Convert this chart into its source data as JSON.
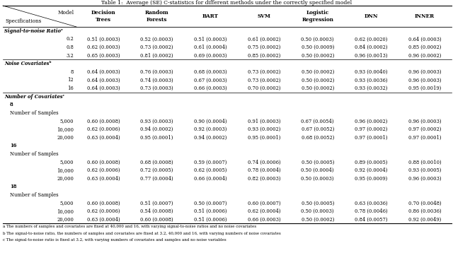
{
  "title": "Table 1:  Average (SE) C-statistics for different methods under the correctly specified model",
  "columns": [
    "Decision\nTrees",
    "Random\nForests",
    "BART",
    "SVM",
    "Logistic\nRegression",
    "DNN",
    "INNER"
  ],
  "footnotes": [
    "a The numbers of samples and covariates are fixed at 40,000 and 16, with varying signal-to-noise ratios and no noise covariates",
    "b The signal-to-noise ratio, the numbers of samples and covariates are fixed at 3.2, 40,000 and 16, with varying numbers of noise covariates",
    "c The signal-to-noise ratio is fixed at 3.2, with varying numbers of covariates and samples and no noise variables"
  ],
  "rows": [
    {
      "label": "Signal-to-noise Ratioᵃ",
      "type": "section_bold",
      "indent": 0
    },
    {
      "label": "0.2",
      "type": "data",
      "indent": 2,
      "values": [
        "0.51 (0.0003)",
        "0.52 (0.0003)",
        "0.51 (0.0003)",
        "0.61 (0.0002)",
        "0.50 (0.0003)",
        "0.62 (0.0020)",
        "0.64 (0.0003)"
      ]
    },
    {
      "label": "0.8",
      "type": "data",
      "indent": 2,
      "values": [
        "0.62 (0.0003)",
        "0.73 (0.0002)",
        "0.61 (0.0004)",
        "0.75 (0.0002)",
        "0.50 (0.0009)",
        "0.84 (0.0002)",
        "0.85 (0.0002)"
      ]
    },
    {
      "label": "3.2",
      "type": "data",
      "indent": 2,
      "values": [
        "0.65 (0.0003)",
        "0.81 (0.0002)",
        "0.69 (0.0003)",
        "0.85 (0.0002)",
        "0.50 (0.0002)",
        "0.96 (0.0013)",
        "0.96 (0.0002)"
      ]
    },
    {
      "label": "Noise Covariatesᵇ",
      "type": "section_bold",
      "indent": 0
    },
    {
      "label": "8",
      "type": "data",
      "indent": 2,
      "values": [
        "0.64 (0.0003)",
        "0.76 (0.0003)",
        "0.68 (0.0003)",
        "0.73 (0.0002)",
        "0.50 (0.0002)",
        "0.93 (0.0040)",
        "0.96 (0.0003)"
      ]
    },
    {
      "label": "12",
      "type": "data",
      "indent": 2,
      "values": [
        "0.64 (0.0003)",
        "0.74 (0.0003)",
        "0.67 (0.0003)",
        "0.73 (0.0002)",
        "0.50 (0.0002)",
        "0.93 (0.0036)",
        "0.96 (0.0003)"
      ]
    },
    {
      "label": "16",
      "type": "data",
      "indent": 2,
      "values": [
        "0.64 (0.0003)",
        "0.73 (0.0003)",
        "0.66 (0.0003)",
        "0.70 (0.0002)",
        "0.50 (0.0002)",
        "0.93 (0.0032)",
        "0.95 (0.0019)"
      ]
    },
    {
      "label": "Number of Covariatesᶜ",
      "type": "section_bold",
      "indent": 0
    },
    {
      "label": "8",
      "type": "subsection_bold",
      "indent": 1
    },
    {
      "label": "Number of Samples",
      "type": "plain",
      "indent": 1
    },
    {
      "label": "5,000",
      "type": "data",
      "indent": 2,
      "values": [
        "0.60 (0.0008)",
        "0.93 (0.0003)",
        "0.90 (0.0004)",
        "0.91 (0.0003)",
        "0.67 (0.0054)",
        "0.96 (0.0002)",
        "0.96 (0.0003)"
      ]
    },
    {
      "label": "10,000",
      "type": "data",
      "indent": 2,
      "values": [
        "0.62 (0.0006)",
        "0.94 (0.0002)",
        "0.92 (0.0003)",
        "0.93 (0.0002)",
        "0.67 (0.0052)",
        "0.97 (0.0002)",
        "0.97 (0.0002)"
      ]
    },
    {
      "label": "20,000",
      "type": "data",
      "indent": 2,
      "values": [
        "0.63 (0.0004)",
        "0.95 (0.0001)",
        "0.94 (0.0002)",
        "0.95 (0.0001)",
        "0.68 (0.0052)",
        "0.97 (0.0001)",
        "0.97 (0.0001)"
      ]
    },
    {
      "label": "16",
      "type": "subsection_bold",
      "indent": 1
    },
    {
      "label": "Number of Samples",
      "type": "plain",
      "indent": 1
    },
    {
      "label": "5,000",
      "type": "data",
      "indent": 2,
      "values": [
        "0.60 (0.0008)",
        "0.68 (0.0008)",
        "0.59 (0.0007)",
        "0.74 (0.0006)",
        "0.50 (0.0005)",
        "0.89 (0.0005)",
        "0.88 (0.0010)"
      ]
    },
    {
      "label": "10,000",
      "type": "data",
      "indent": 2,
      "values": [
        "0.62 (0.0006)",
        "0.72 (0.0005)",
        "0.62 (0.0005)",
        "0.78 (0.0004)",
        "0.50 (0.0004)",
        "0.92 (0.0004)",
        "0.93 (0.0005)"
      ]
    },
    {
      "label": "20,000",
      "type": "data",
      "indent": 2,
      "values": [
        "0.63 (0.0004)",
        "0.77 (0.0004)",
        "0.66 (0.0004)",
        "0.82 (0.0003)",
        "0.50 (0.0003)",
        "0.95 (0.0009)",
        "0.96 (0.0003)"
      ]
    },
    {
      "label": "18",
      "type": "subsection_bold",
      "indent": 1
    },
    {
      "label": "Number of Samples",
      "type": "plain",
      "indent": 1
    },
    {
      "label": "5,000",
      "type": "data",
      "indent": 2,
      "values": [
        "0.60 (0.0008)",
        "0.51 (0.0007)",
        "0.50 (0.0007)",
        "0.60 (0.0007)",
        "0.50 (0.0005)",
        "0.63 (0.0036)",
        "0.70 (0.0048)"
      ]
    },
    {
      "label": "10,000",
      "type": "data",
      "indent": 2,
      "values": [
        "0.62 (0.0006)",
        "0.54 (0.0008)",
        "0.51 (0.0006)",
        "0.62 (0.0004)",
        "0.50 (0.0003)",
        "0.78 (0.0046)",
        "0.86 (0.0036)"
      ]
    },
    {
      "label": "20,000",
      "type": "data",
      "indent": 2,
      "values": [
        "0.63 (0.0004)",
        "0.60 (0.0008)",
        "0.51 (0.0006)",
        "0.66 (0.0003)",
        "0.50 (0.0002)",
        "0.84 (0.0057)",
        "0.92 (0.0049)"
      ]
    }
  ]
}
